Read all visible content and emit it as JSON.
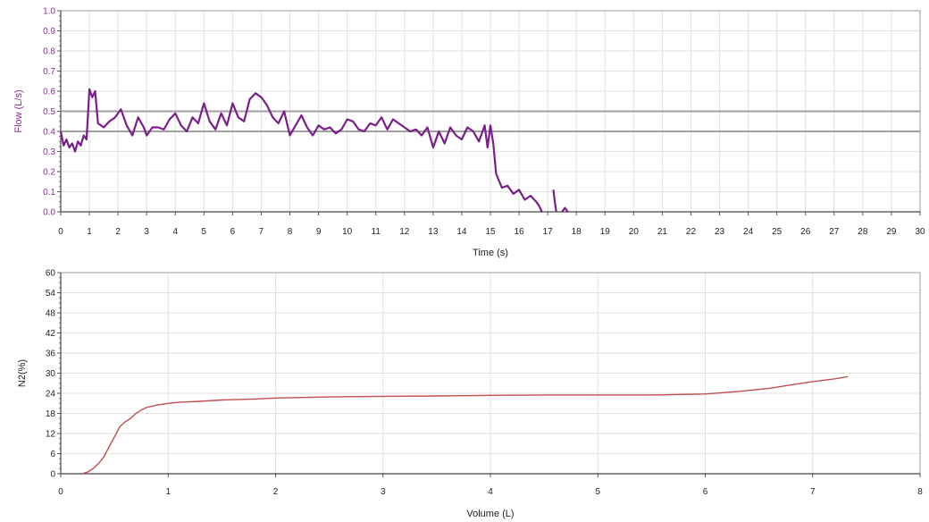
{
  "chart_data": [
    {
      "type": "line",
      "xlabel": "Time (s)",
      "ylabel": "Flow (L/s)",
      "xlim": [
        0,
        30
      ],
      "ylim": [
        0,
        1.0
      ],
      "x_ticks": [
        "0",
        "1",
        "2",
        "3",
        "4",
        "5",
        "6",
        "7",
        "8",
        "9",
        "10",
        "11",
        "12",
        "13",
        "14",
        "15",
        "16",
        "17",
        "18",
        "19",
        "20",
        "21",
        "22",
        "23",
        "24",
        "25",
        "26",
        "27",
        "28",
        "29",
        "30"
      ],
      "y_ticks": [
        {
          "value": 0.0,
          "label": "0.0"
        },
        {
          "value": 0.1,
          "label": "0.1"
        },
        {
          "value": 0.2,
          "label": "0.2"
        },
        {
          "value": 0.3,
          "label": "0.3"
        },
        {
          "value": 0.4,
          "label": "0.4"
        },
        {
          "value": 0.5,
          "label": "0.5"
        },
        {
          "value": 0.6,
          "label": "0.6"
        },
        {
          "value": 0.7,
          "label": "0.7"
        },
        {
          "value": 0.8,
          "label": "0.8"
        },
        {
          "value": 0.9,
          "label": "0.9"
        },
        {
          "value": 1.0,
          "label": "1.0"
        }
      ],
      "grid": true,
      "reference_lines": [
        0.5,
        0.4
      ],
      "reference_line_color": "#a0a0a0",
      "series_color": "#7a1f8a",
      "label_color": "#8a2a9a",
      "series": [
        {
          "x": [
            0.0,
            0.1,
            0.2,
            0.3,
            0.4,
            0.5,
            0.6,
            0.7,
            0.8,
            0.9,
            1.0,
            1.1,
            1.2,
            1.3,
            1.5,
            1.7,
            1.9,
            2.1,
            2.3,
            2.5,
            2.7,
            2.9,
            3.0,
            3.2,
            3.4,
            3.6,
            3.8,
            4.0,
            4.2,
            4.4,
            4.6,
            4.8,
            5.0,
            5.2,
            5.4,
            5.6,
            5.8,
            6.0,
            6.2,
            6.4,
            6.6,
            6.8,
            7.0,
            7.2,
            7.4,
            7.6,
            7.8,
            8.0,
            8.2,
            8.4,
            8.6,
            8.8,
            9.0,
            9.2,
            9.4,
            9.6,
            9.8,
            10.0,
            10.2,
            10.4,
            10.6,
            10.8,
            11.0,
            11.2,
            11.4,
            11.6,
            11.8,
            12.0,
            12.2,
            12.4,
            12.6,
            12.8,
            13.0,
            13.2,
            13.4,
            13.6,
            13.8,
            14.0,
            14.2,
            14.4,
            14.6,
            14.8,
            14.9,
            15.0,
            15.1,
            15.2,
            15.4,
            15.6,
            15.8,
            16.0,
            16.2,
            16.4,
            16.6,
            16.7,
            16.8
          ],
          "y": [
            0.4,
            0.33,
            0.36,
            0.32,
            0.34,
            0.3,
            0.35,
            0.33,
            0.38,
            0.36,
            0.61,
            0.57,
            0.6,
            0.44,
            0.42,
            0.45,
            0.47,
            0.51,
            0.43,
            0.38,
            0.47,
            0.42,
            0.38,
            0.42,
            0.42,
            0.41,
            0.46,
            0.49,
            0.43,
            0.4,
            0.47,
            0.44,
            0.54,
            0.45,
            0.41,
            0.49,
            0.43,
            0.54,
            0.47,
            0.45,
            0.56,
            0.59,
            0.57,
            0.53,
            0.47,
            0.44,
            0.5,
            0.38,
            0.43,
            0.48,
            0.42,
            0.38,
            0.43,
            0.41,
            0.42,
            0.39,
            0.41,
            0.46,
            0.45,
            0.41,
            0.4,
            0.44,
            0.43,
            0.47,
            0.41,
            0.46,
            0.44,
            0.42,
            0.4,
            0.41,
            0.38,
            0.42,
            0.32,
            0.4,
            0.34,
            0.42,
            0.38,
            0.36,
            0.42,
            0.4,
            0.35,
            0.43,
            0.32,
            0.43,
            0.34,
            0.19,
            0.12,
            0.13,
            0.09,
            0.11,
            0.06,
            0.08,
            0.05,
            0.03,
            0.0
          ]
        },
        {
          "x": [
            17.2,
            17.25,
            17.3
          ],
          "y": [
            0.11,
            0.05,
            0.0
          ]
        },
        {
          "x": [
            17.5,
            17.6,
            17.7
          ],
          "y": [
            0.0,
            0.02,
            0.0
          ]
        }
      ]
    },
    {
      "type": "line",
      "xlabel": "Volume (L)",
      "ylabel": "N2(%)",
      "xlim": [
        0,
        8
      ],
      "ylim": [
        0,
        60
      ],
      "x_ticks": [
        "0",
        "1",
        "2",
        "3",
        "4",
        "5",
        "6",
        "7",
        "8"
      ],
      "y_ticks": [
        {
          "value": 0,
          "label": "0"
        },
        {
          "value": 6,
          "label": "6"
        },
        {
          "value": 12,
          "label": "12"
        },
        {
          "value": 18,
          "label": "18"
        },
        {
          "value": 24,
          "label": "24"
        },
        {
          "value": 30,
          "label": "30"
        },
        {
          "value": 36,
          "label": "36"
        },
        {
          "value": 42,
          "label": "42"
        },
        {
          "value": 48,
          "label": "48"
        },
        {
          "value": 54,
          "label": "54"
        },
        {
          "value": 60,
          "label": "60"
        }
      ],
      "grid": true,
      "series_color": "#c0504d",
      "label_color": "#222222",
      "series": [
        {
          "x": [
            0.2,
            0.25,
            0.3,
            0.35,
            0.4,
            0.45,
            0.5,
            0.55,
            0.6,
            0.65,
            0.7,
            0.75,
            0.8,
            0.9,
            1.0,
            1.1,
            1.3,
            1.5,
            1.8,
            2.0,
            2.5,
            3.0,
            3.5,
            4.0,
            4.5,
            5.0,
            5.5,
            6.0,
            6.3,
            6.6,
            6.8,
            7.0,
            7.2,
            7.33
          ],
          "y": [
            0,
            0.5,
            1.5,
            3,
            5,
            8,
            11,
            14,
            15.5,
            16.5,
            18,
            19,
            19.8,
            20.5,
            21,
            21.3,
            21.6,
            22,
            22.3,
            22.6,
            22.9,
            23.1,
            23.2,
            23.4,
            23.5,
            23.5,
            23.5,
            23.8,
            24.5,
            25.5,
            26.5,
            27.5,
            28.3,
            29.0
          ]
        }
      ]
    }
  ]
}
